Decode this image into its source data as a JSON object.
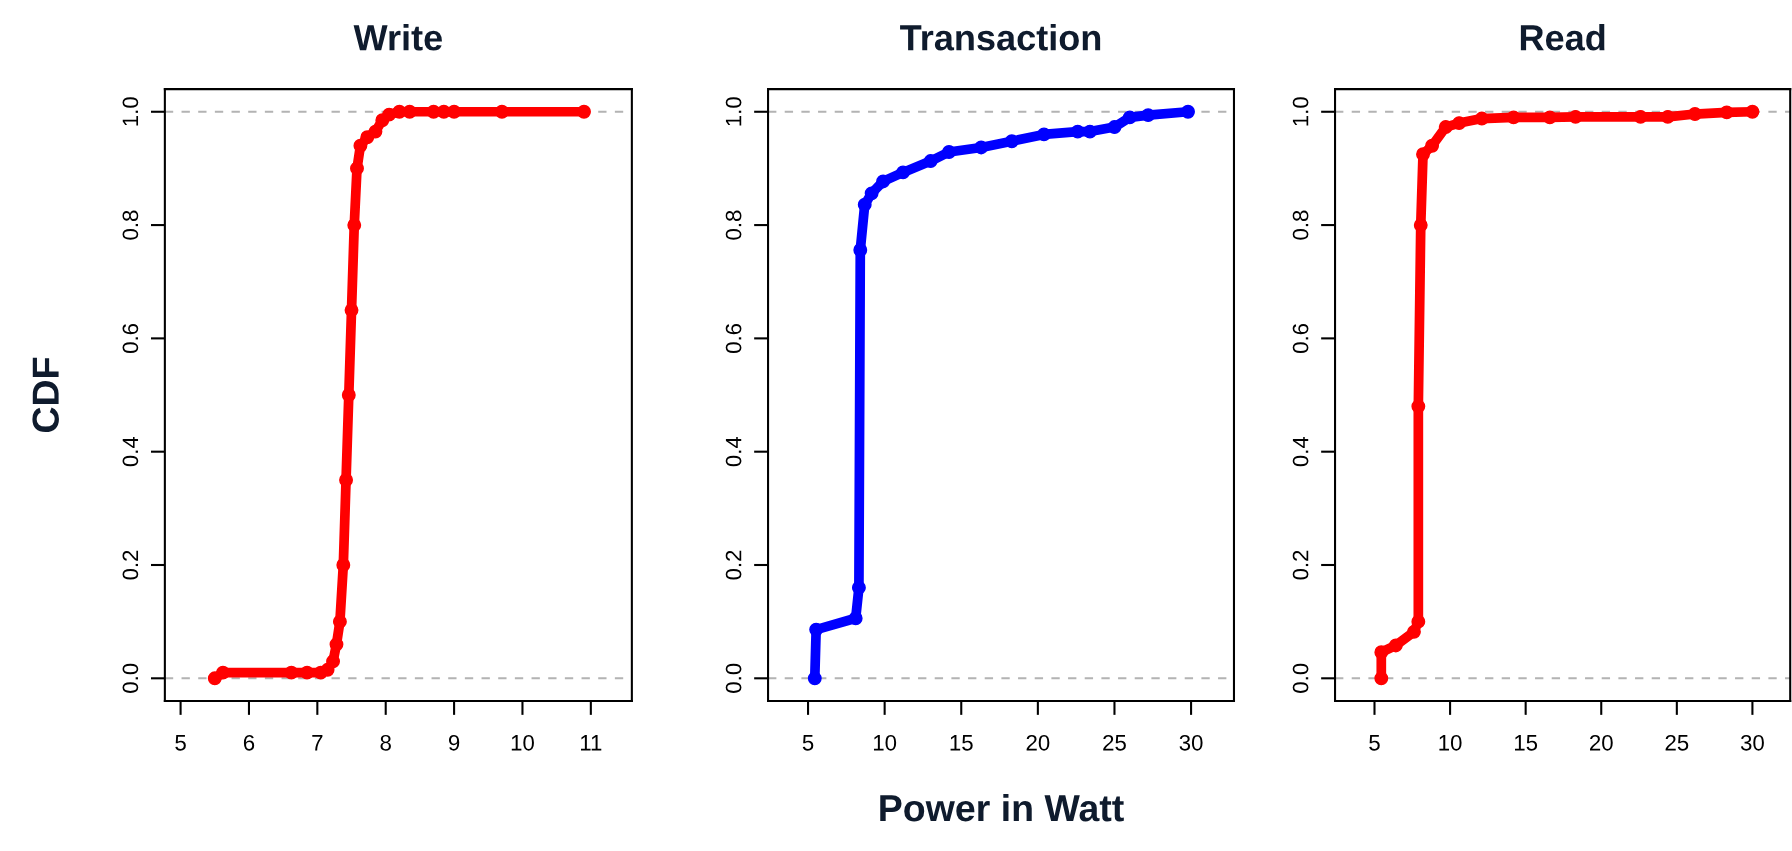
{
  "chart_data": [
    {
      "type": "line",
      "title": "Write",
      "ylabel": "CDF",
      "marker": "circle",
      "line_style": "solid",
      "series": [
        {
          "color": "#ff0000",
          "x": [
            5.5,
            5.62,
            6.62,
            6.85,
            7.05,
            7.15,
            7.23,
            7.28,
            7.33,
            7.38,
            7.42,
            7.46,
            7.5,
            7.54,
            7.58,
            7.63,
            7.73,
            7.85,
            7.95,
            8.05,
            8.2,
            8.35,
            8.7,
            8.85,
            9.0,
            9.7,
            10.9
          ],
          "values": [
            0,
            0.01,
            0.01,
            0.01,
            0.01,
            0.015,
            0.03,
            0.06,
            0.1,
            0.2,
            0.35,
            0.5,
            0.65,
            0.8,
            0.9,
            0.94,
            0.955,
            0.965,
            0.985,
            0.995,
            1.0,
            1.0,
            1.0,
            1.0,
            1.0,
            1.0,
            1.0
          ]
        }
      ],
      "xlim": [
        4.77,
        11.6
      ],
      "xticks": [
        5,
        6,
        7,
        8,
        9,
        10,
        11
      ],
      "ylim": [
        -0.04,
        1.04
      ],
      "yticks": [
        {
          "value": 0,
          "label": "0.0"
        },
        {
          "value": 0.2,
          "label": "0.2"
        },
        {
          "value": 0.4,
          "label": "0.4"
        },
        {
          "value": 0.6,
          "label": "0.6"
        },
        {
          "value": 0.8,
          "label": "0.8"
        },
        {
          "value": 1,
          "label": "1.0"
        }
      ],
      "ref_lines": [
        {
          "axis": "y",
          "value": 0,
          "color": "#b3b3b3",
          "line_style": "dashed"
        },
        {
          "axis": "y",
          "value": 1,
          "color": "#b3b3b3",
          "line_style": "dashed"
        }
      ]
    },
    {
      "type": "line",
      "title": "Transaction",
      "xlabel": "Power in Watt",
      "marker": "circle",
      "line_style": "solid",
      "series": [
        {
          "color": "#0000ff",
          "x": [
            5.44,
            5.53,
            8.11,
            8.32,
            8.41,
            8.7,
            9.15,
            9.9,
            11.2,
            13.0,
            14.2,
            16.3,
            18.3,
            20.4,
            22.6,
            23.4,
            25.0,
            26.0,
            27.2,
            29.8
          ],
          "values": [
            0,
            0.086,
            0.106,
            0.16,
            0.756,
            0.836,
            0.856,
            0.877,
            0.893,
            0.913,
            0.929,
            0.937,
            0.948,
            0.96,
            0.965,
            0.965,
            0.973,
            0.99,
            0.994,
            1.0
          ]
        }
      ],
      "xlim": [
        2.39,
        32.8
      ],
      "xticks": [
        5,
        10,
        15,
        20,
        25,
        30
      ],
      "ylim": [
        -0.04,
        1.04
      ],
      "yticks": [
        {
          "value": 0,
          "label": "0.0"
        },
        {
          "value": 0.2,
          "label": "0.2"
        },
        {
          "value": 0.4,
          "label": "0.4"
        },
        {
          "value": 0.6,
          "label": "0.6"
        },
        {
          "value": 0.8,
          "label": "0.8"
        },
        {
          "value": 1,
          "label": "1.0"
        }
      ],
      "ref_lines": [
        {
          "axis": "y",
          "value": 0,
          "color": "#b3b3b3",
          "line_style": "dashed"
        },
        {
          "axis": "y",
          "value": 1,
          "color": "#b3b3b3",
          "line_style": "dashed"
        }
      ]
    },
    {
      "type": "line",
      "title": "Read",
      "marker": "circle",
      "line_style": "solid",
      "series": [
        {
          "color": "#ff0000",
          "x": [
            5.45,
            5.45,
            6.41,
            7.61,
            7.9,
            7.9,
            8.06,
            8.21,
            8.81,
            9.71,
            10.6,
            12.1,
            14.2,
            16.6,
            18.3,
            22.6,
            24.4,
            26.2,
            28.3,
            30.0
          ],
          "values": [
            0,
            0.046,
            0.058,
            0.082,
            0.1,
            0.48,
            0.8,
            0.925,
            0.94,
            0.973,
            0.98,
            0.988,
            0.99,
            0.99,
            0.991,
            0.991,
            0.991,
            0.996,
            0.999,
            1.0
          ]
        }
      ],
      "xlim": [
        2.39,
        32.5
      ],
      "xticks": [
        5,
        10,
        15,
        20,
        25,
        30
      ],
      "ylim": [
        -0.04,
        1.04
      ],
      "yticks": [
        {
          "value": 0,
          "label": "0.0"
        },
        {
          "value": 0.2,
          "label": "0.2"
        },
        {
          "value": 0.4,
          "label": "0.4"
        },
        {
          "value": 0.6,
          "label": "0.6"
        },
        {
          "value": 0.8,
          "label": "0.8"
        },
        {
          "value": 1,
          "label": "1.0"
        }
      ],
      "ref_lines": [
        {
          "axis": "y",
          "value": 0,
          "color": "#b3b3b3",
          "line_style": "dashed"
        },
        {
          "axis": "y",
          "value": 1,
          "color": "#b3b3b3",
          "line_style": "dashed"
        }
      ]
    }
  ]
}
